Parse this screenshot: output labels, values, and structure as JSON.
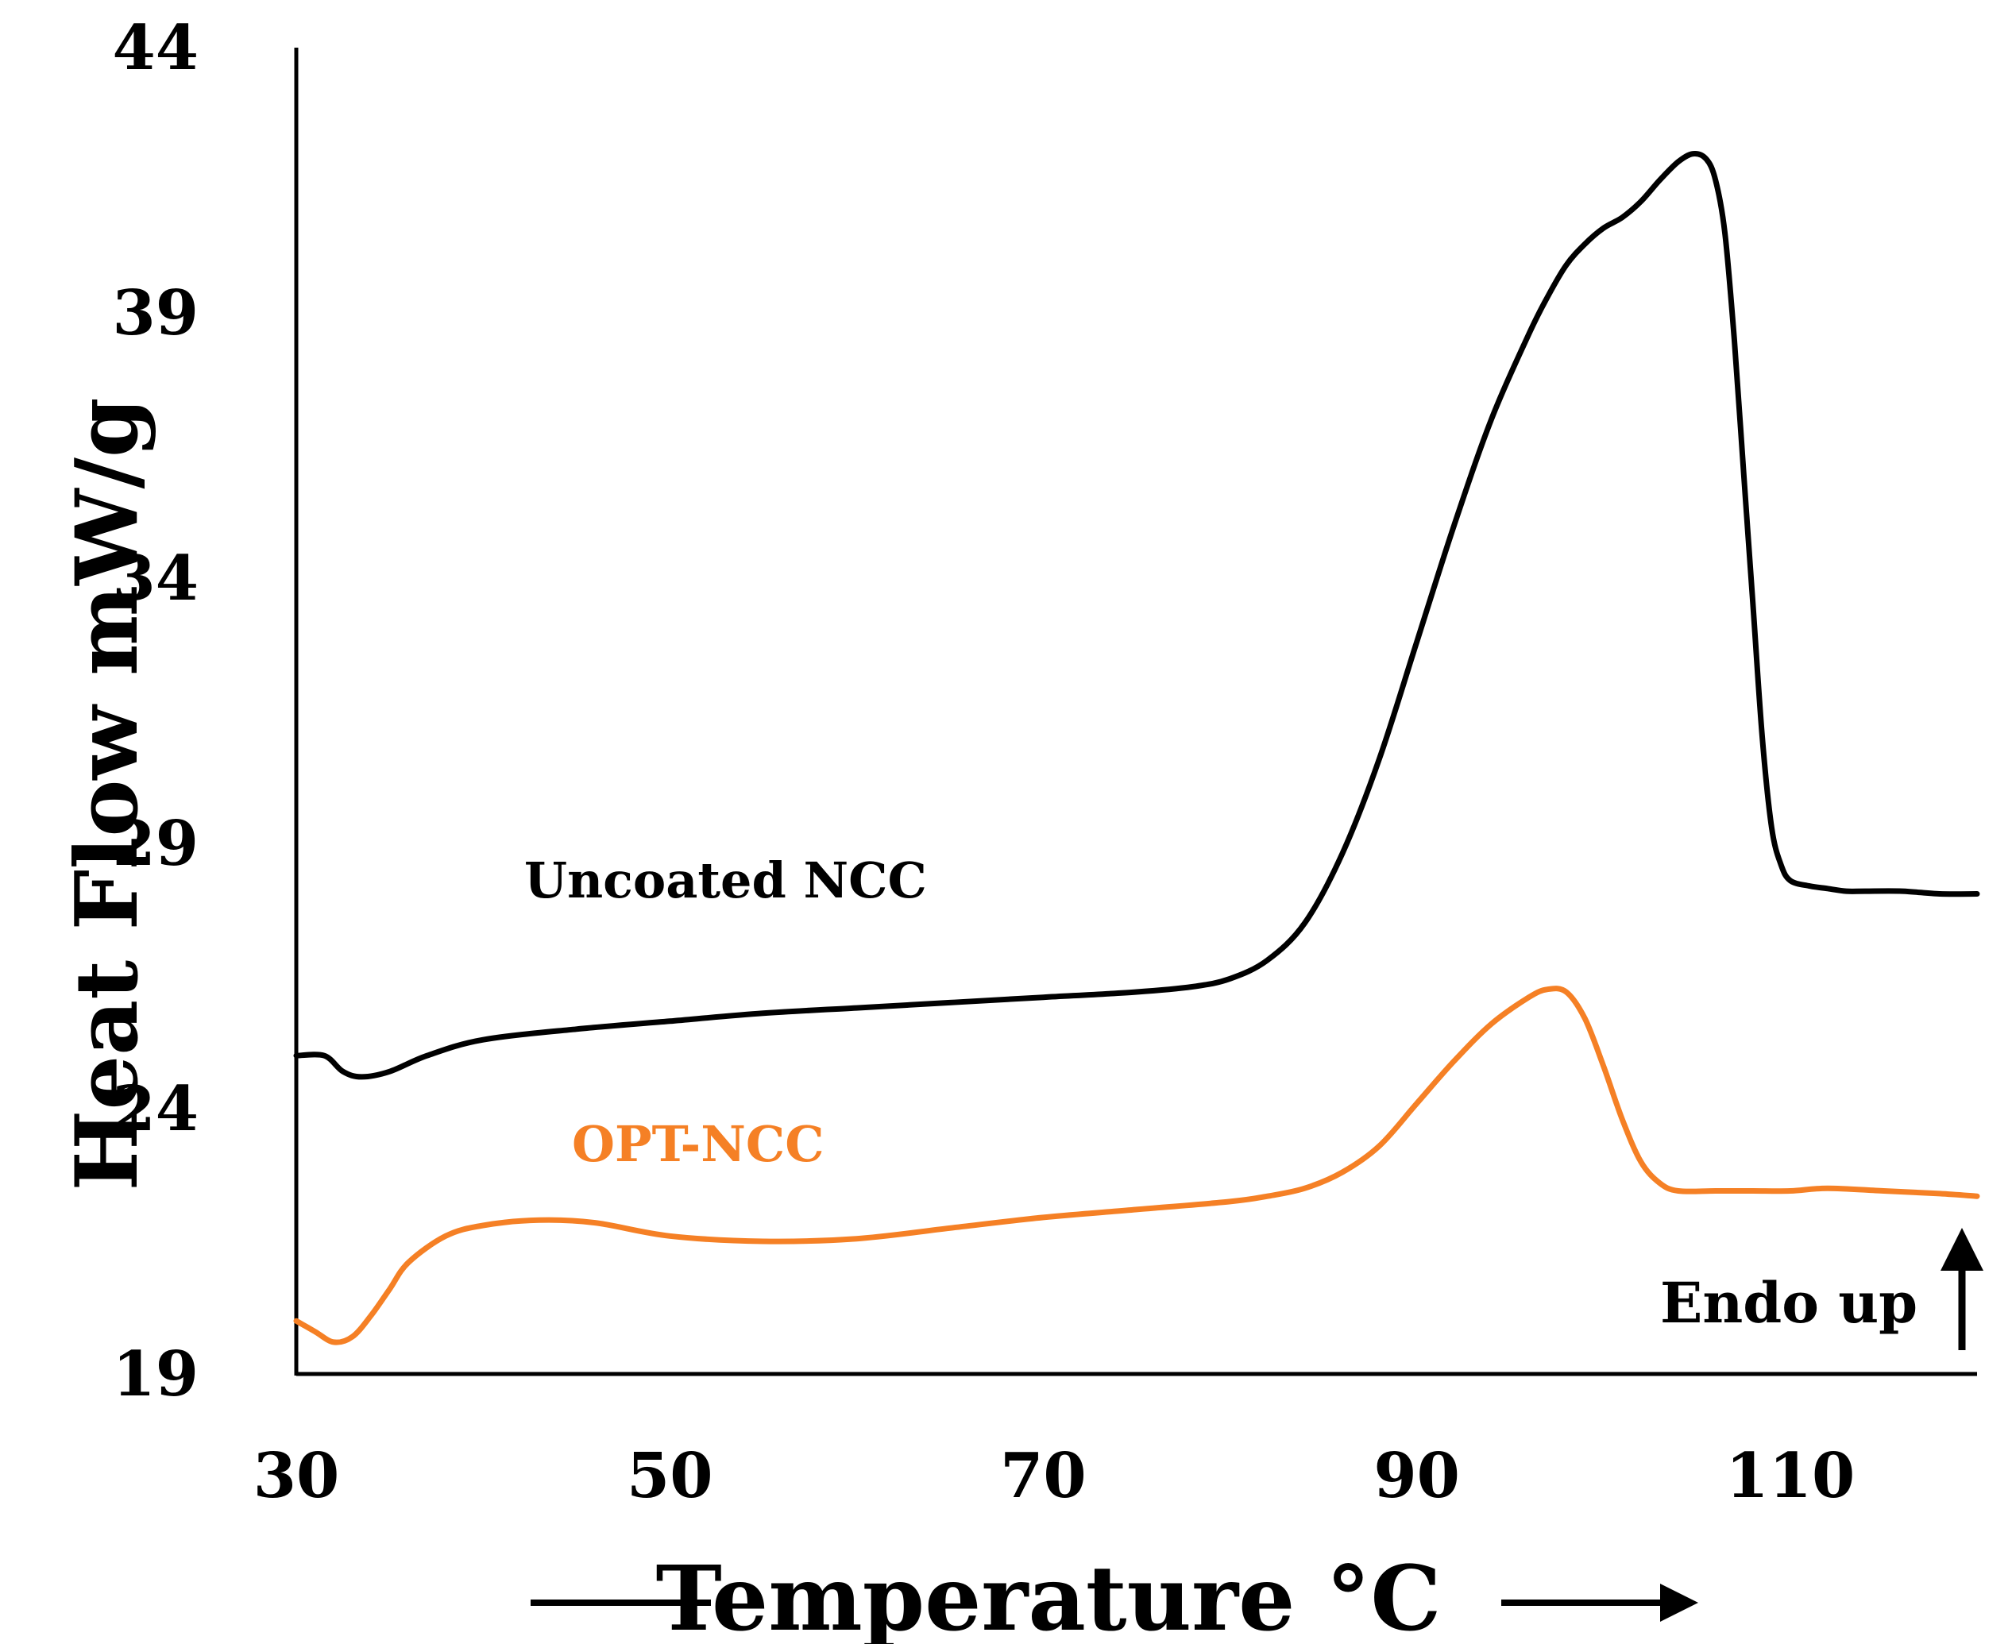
{
  "chart_data": {
    "type": "line",
    "title": "",
    "xlabel": "Temperature °C",
    "ylabel": "Heat Flow mW/g",
    "xlim": [
      30,
      120
    ],
    "ylim": [
      19,
      44
    ],
    "xticks": [
      30,
      50,
      70,
      90,
      110
    ],
    "yticks": [
      19,
      24,
      29,
      34,
      39,
      44
    ],
    "grid": false,
    "annotation": "Endo up",
    "series": [
      {
        "name": "Uncoated NCC",
        "color": "#000000",
        "x": [
          30,
          31.5,
          32.5,
          33.5,
          35,
          37,
          40,
          45,
          50,
          55,
          60,
          65,
          70,
          75,
          78,
          80,
          82,
          84,
          86,
          88,
          90,
          92,
          94,
          96,
          97,
          98,
          99,
          100,
          101,
          102,
          103,
          104,
          104.8,
          105.5,
          106,
          106.5,
          107,
          107.5,
          108,
          108.5,
          109,
          109.5,
          110,
          111,
          112,
          113,
          114,
          116,
          118,
          120
        ],
        "values": [
          25.0,
          25.0,
          24.7,
          24.6,
          24.7,
          25.0,
          25.3,
          25.5,
          25.65,
          25.8,
          25.9,
          26.0,
          26.1,
          26.2,
          26.3,
          26.45,
          26.8,
          27.5,
          28.8,
          30.6,
          32.8,
          35.0,
          37.0,
          38.6,
          39.3,
          39.9,
          40.3,
          40.6,
          40.8,
          41.1,
          41.5,
          41.85,
          42.0,
          41.9,
          41.5,
          40.5,
          38.5,
          36.0,
          33.5,
          31.0,
          29.3,
          28.6,
          28.3,
          28.2,
          28.15,
          28.1,
          28.1,
          28.1,
          28.05,
          28.05
        ]
      },
      {
        "name": "OPT-NCC",
        "color": "#F58025",
        "x": [
          30,
          31,
          32,
          33,
          34,
          35,
          36,
          38,
          40,
          43,
          46,
          50,
          55,
          60,
          65,
          70,
          75,
          80,
          82,
          84,
          86,
          88,
          90,
          92,
          94,
          96,
          97,
          98,
          99,
          100,
          101,
          102,
          103,
          104,
          106,
          108,
          110,
          112,
          115,
          118,
          120
        ],
        "values": [
          20.0,
          19.8,
          19.6,
          19.7,
          20.1,
          20.6,
          21.1,
          21.6,
          21.8,
          21.9,
          21.85,
          21.6,
          21.5,
          21.55,
          21.75,
          21.95,
          22.1,
          22.25,
          22.35,
          22.5,
          22.8,
          23.3,
          24.1,
          24.9,
          25.6,
          26.1,
          26.25,
          26.2,
          25.7,
          24.8,
          23.8,
          23.0,
          22.6,
          22.45,
          22.45,
          22.45,
          22.45,
          22.5,
          22.45,
          22.4,
          22.35
        ]
      }
    ]
  }
}
